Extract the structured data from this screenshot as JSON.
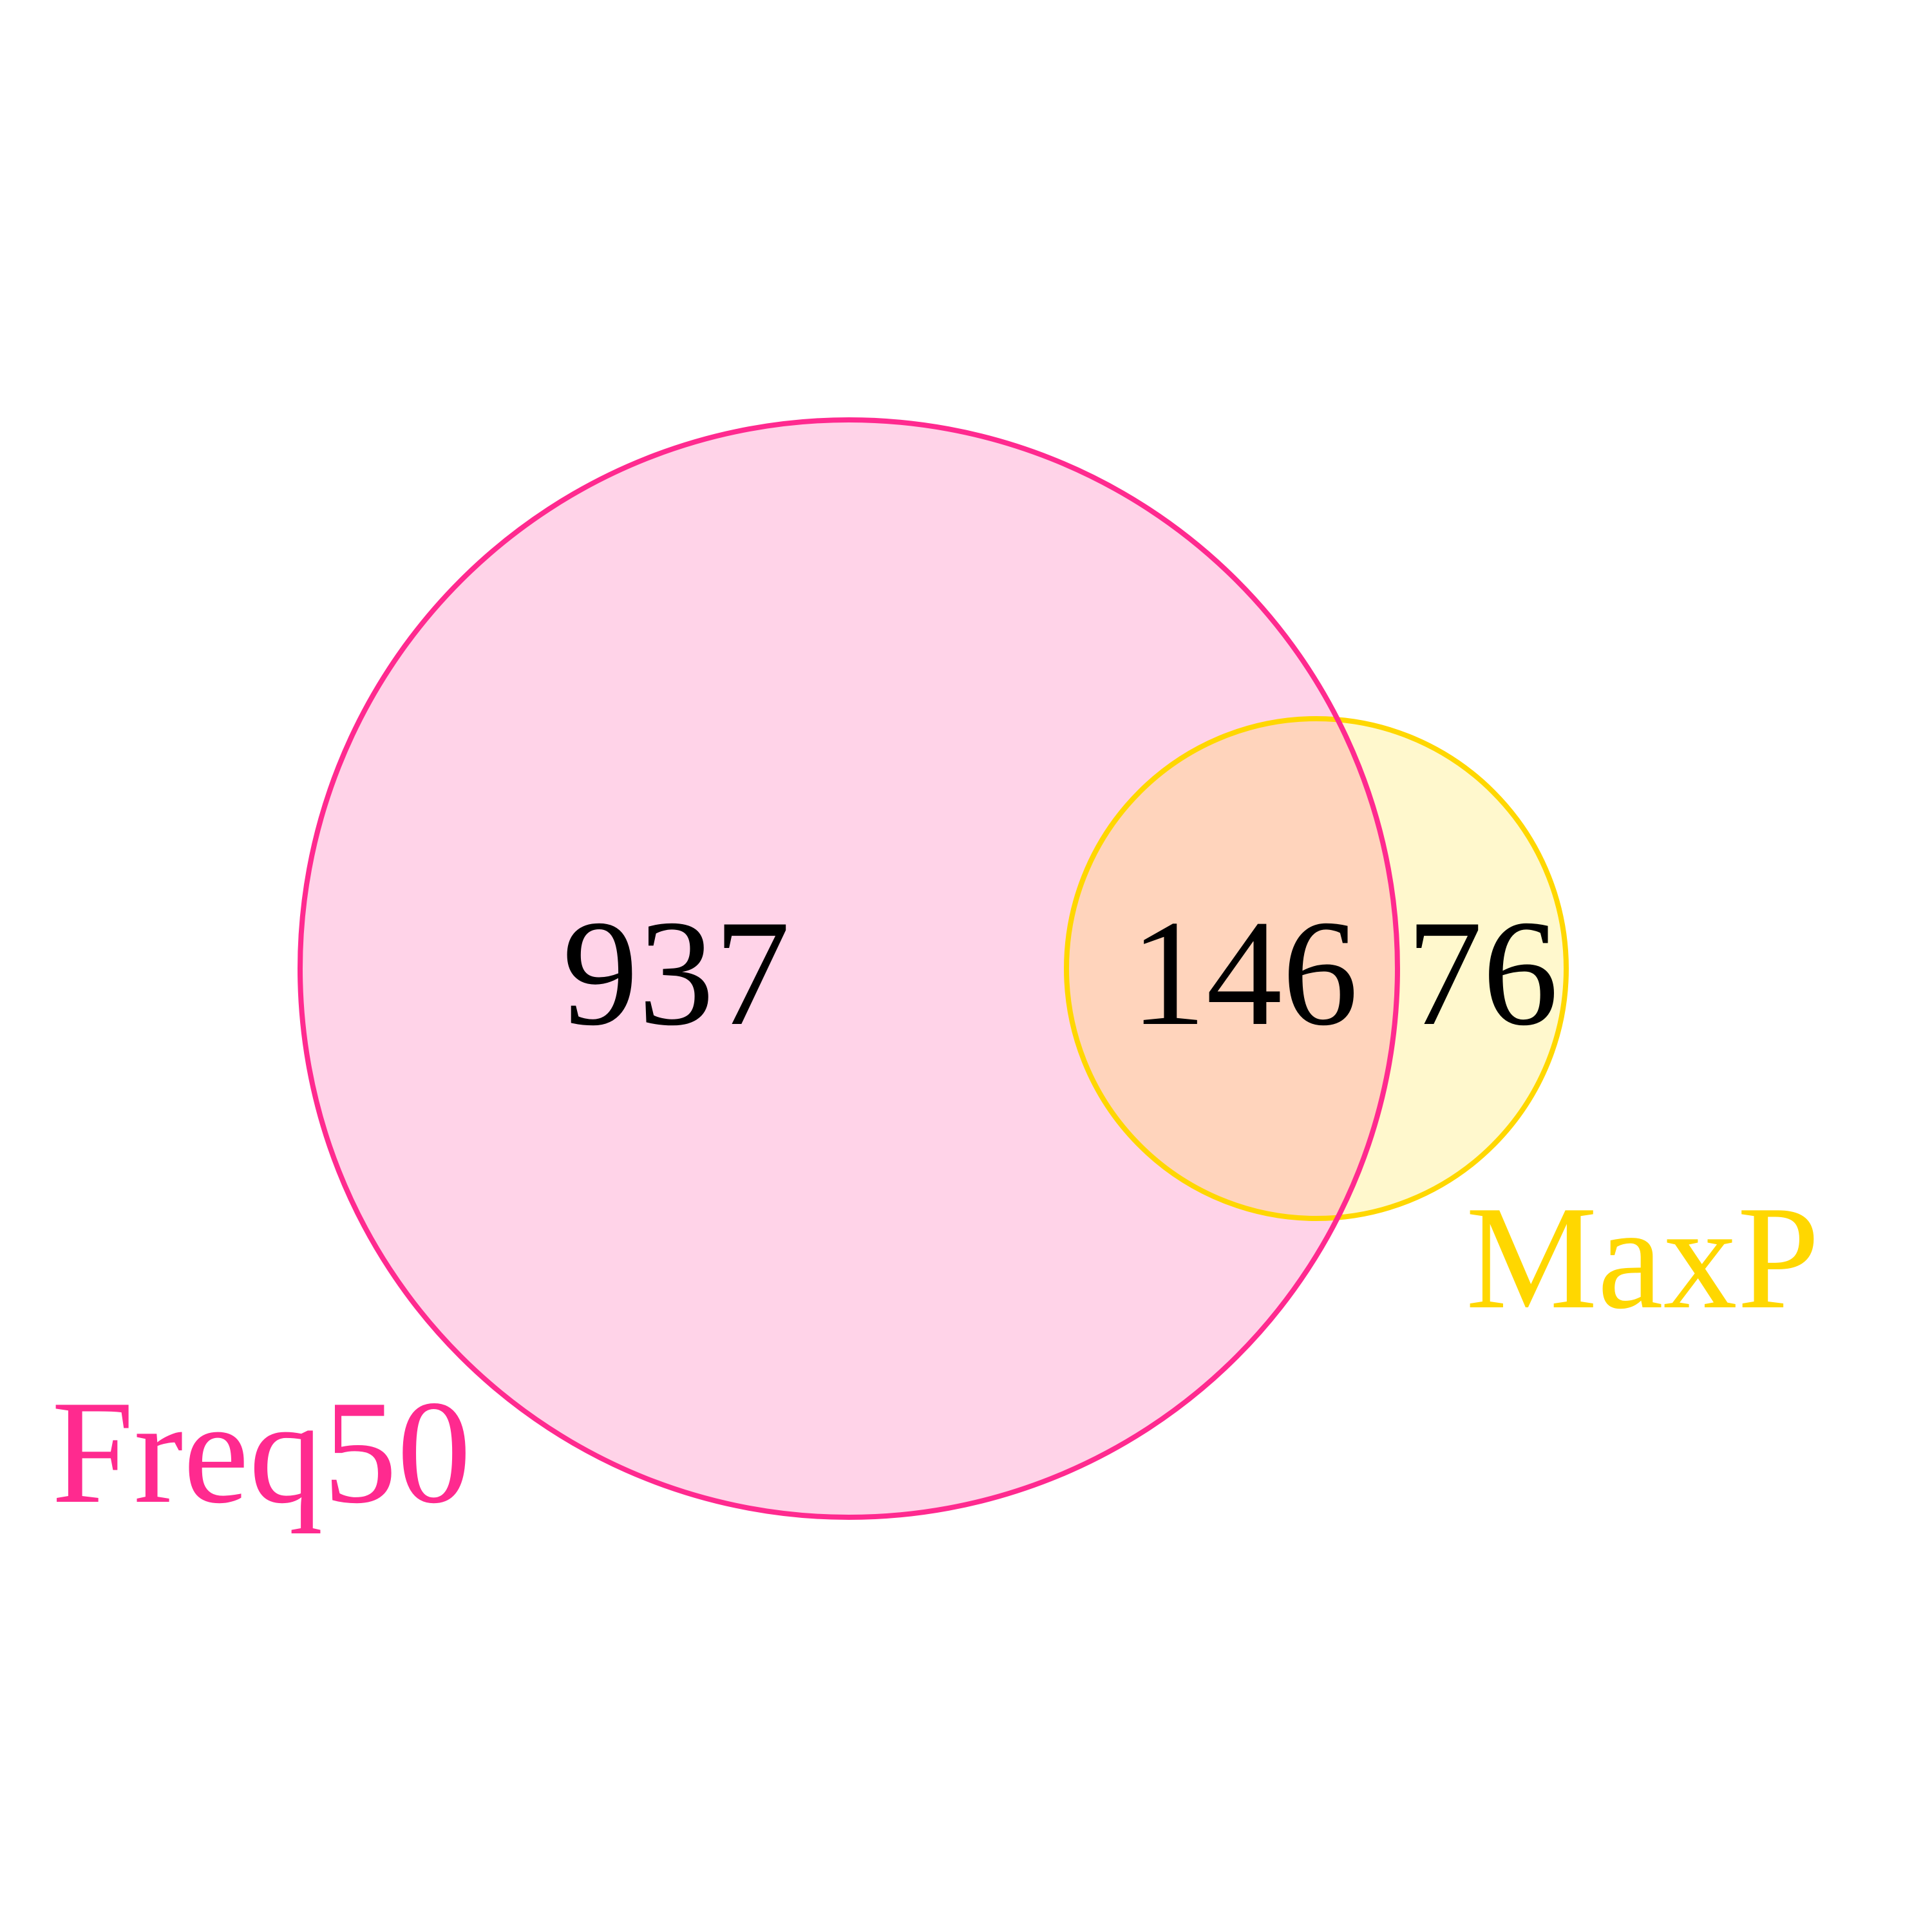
{
  "sets": [
    {
      "name": "Freq50",
      "stroke_color": "#FF2A8F",
      "fill_color": "#FFD3E8"
    },
    {
      "name": "MaxP",
      "stroke_color": "#FFD700",
      "fill_color": "#FFF8CD"
    }
  ],
  "regions": {
    "freq50_only": "937",
    "intersection": "146",
    "maxp_only": "76"
  },
  "colors": {
    "background": "#FFFFFF",
    "intersection_fill": "#FFD4BC",
    "count_text": "#000000"
  }
}
